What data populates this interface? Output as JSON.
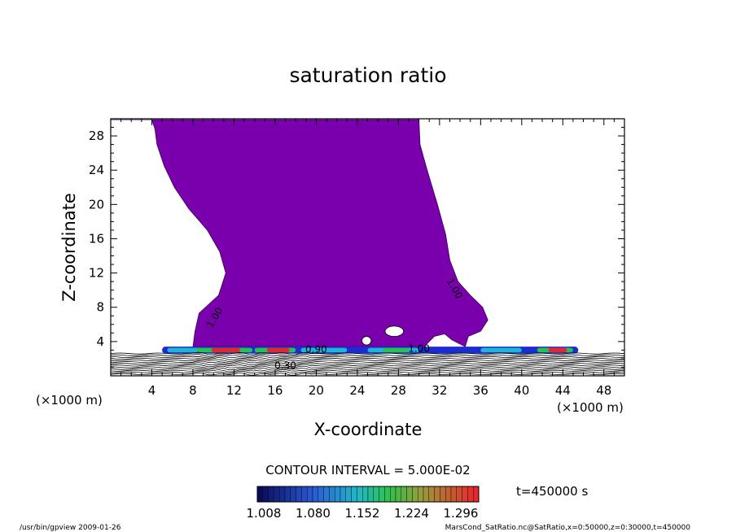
{
  "chart_data": {
    "type": "contour",
    "title": "saturation ratio",
    "xlabel": "X-coordinate",
    "ylabel": "Z-coordinate",
    "x_unit_note": "(×1000 m)",
    "y_unit_note": "(×1000 m)",
    "xlim": [
      0,
      50
    ],
    "ylim": [
      0,
      30
    ],
    "x_ticks": [
      4,
      8,
      12,
      16,
      20,
      24,
      28,
      32,
      36,
      40,
      44,
      48
    ],
    "y_ticks": [
      4,
      8,
      12,
      16,
      20,
      24,
      28
    ],
    "contour_interval_text": "CONTOUR INTERVAL = 5.000E-02",
    "time_text": "t=450000 s",
    "colorbar": {
      "tick_labels": [
        "1.008",
        "1.080",
        "1.152",
        "1.224",
        "1.296"
      ],
      "range": [
        1.008,
        1.296
      ]
    },
    "contour_labels": [
      {
        "text": "1.00",
        "x": 10.4,
        "z": 6.6,
        "angle": -60
      },
      {
        "text": "1.00",
        "x": 33.2,
        "z": 10.0,
        "angle": 60
      },
      {
        "text": "1.00",
        "x": 30.0,
        "z": 2.8,
        "angle": 0
      },
      {
        "text": "0.90",
        "x": 20.0,
        "z": 2.7,
        "angle": 0
      },
      {
        "text": "0.30",
        "x": 17.0,
        "z": 0.8,
        "angle": 0
      }
    ],
    "plume_boundary": [
      [
        0.0,
        29.9
      ],
      [
        4.0,
        29.9
      ],
      [
        4.3,
        28.8
      ],
      [
        4.5,
        27.0
      ],
      [
        5.2,
        24.5
      ],
      [
        6.2,
        22.0
      ],
      [
        7.6,
        19.5
      ],
      [
        9.4,
        17.0
      ],
      [
        10.6,
        14.5
      ],
      [
        11.2,
        12.0
      ],
      [
        10.5,
        9.4
      ],
      [
        8.6,
        7.3
      ],
      [
        8.2,
        5.2
      ],
      [
        8.0,
        3.4
      ],
      [
        30.5,
        3.4
      ],
      [
        31.5,
        4.6
      ],
      [
        32.5,
        4.9
      ],
      [
        33.2,
        4.2
      ],
      [
        34.5,
        3.4
      ],
      [
        34.8,
        4.6
      ],
      [
        36.0,
        5.2
      ],
      [
        36.7,
        6.5
      ],
      [
        36.2,
        8.0
      ],
      [
        35.0,
        9.4
      ],
      [
        33.8,
        11.0
      ],
      [
        33.0,
        13.5
      ],
      [
        32.6,
        16.5
      ],
      [
        31.8,
        20.0
      ],
      [
        30.8,
        24.0
      ],
      [
        30.1,
        27.0
      ],
      [
        30.0,
        29.9
      ]
    ],
    "holes": [
      {
        "x": 27.6,
        "z": 5.2,
        "rx": 0.9,
        "rz": 0.6
      },
      {
        "x": 24.9,
        "z": 4.1,
        "rx": 0.45,
        "rz": 0.5
      }
    ],
    "near_surface_band": {
      "z_top": 3.4,
      "x_start": 5.0,
      "x_end": 45.5
    },
    "footer_left": "/usr/bin/gpview   2009-01-26",
    "footer_right": "MarsCond_SatRatio.nc@SatRatio,x=0:50000,z=0:30000,t=450000",
    "colors": {
      "plume": "#7a00ae",
      "high": "#e8262a",
      "mid": "#27c24a",
      "low": "#1b2dd0",
      "cyan": "#1fb6d6"
    }
  }
}
